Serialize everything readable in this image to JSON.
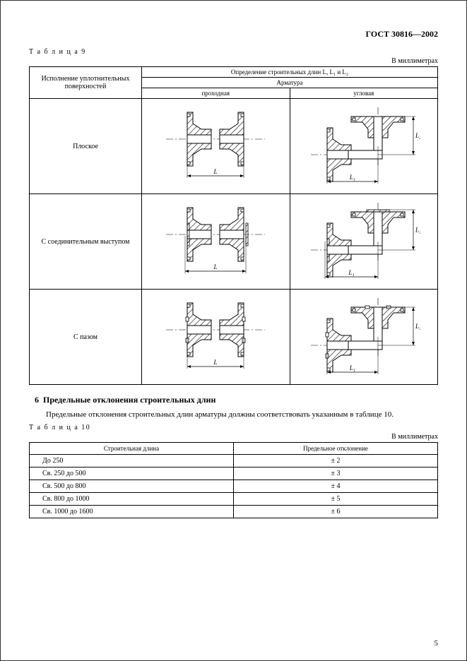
{
  "doc_id": "ГОСТ 30816—2002",
  "table9": {
    "label": "Т а б л и ц а  9",
    "units": "В миллиметрах",
    "col_left_header": "Исполнение уплотнительных поверхностей",
    "col_right_header": "Определение строительных длин L, L₁ и L₂",
    "sub_header": "Арматура",
    "sub_col1": "проходная",
    "sub_col2": "угловая",
    "rows": [
      {
        "label": "Плоское"
      },
      {
        "label": "С соединительным выступом"
      },
      {
        "label": "С пазом"
      }
    ],
    "dim_L": "L",
    "dim_L1": "L₁",
    "dim_L2": "L₂"
  },
  "section": {
    "number": "6",
    "title": "Предельные отклонения строительных длин",
    "text": "Предельные отклонения строительных длин арматуры должны соответствовать указанным в таблице 10."
  },
  "table10": {
    "label": "Т а б л и ц а  10",
    "units": "В миллиметрах",
    "col1_header": "Строительная длина",
    "col2_header": "Предельное отклонение",
    "rows": [
      {
        "len": "До 250",
        "tol": "± 2"
      },
      {
        "len": "Св. 250 до 500",
        "tol": "± 3"
      },
      {
        "len": "Св. 500 до 800",
        "tol": "± 4"
      },
      {
        "len": "Св. 800 до 1000",
        "tol": "± 5"
      },
      {
        "len": "Св. 1000 до 1600",
        "tol": "± 6"
      }
    ]
  },
  "page_number": "5",
  "hatch_color": "#000000",
  "line_color": "#000000"
}
